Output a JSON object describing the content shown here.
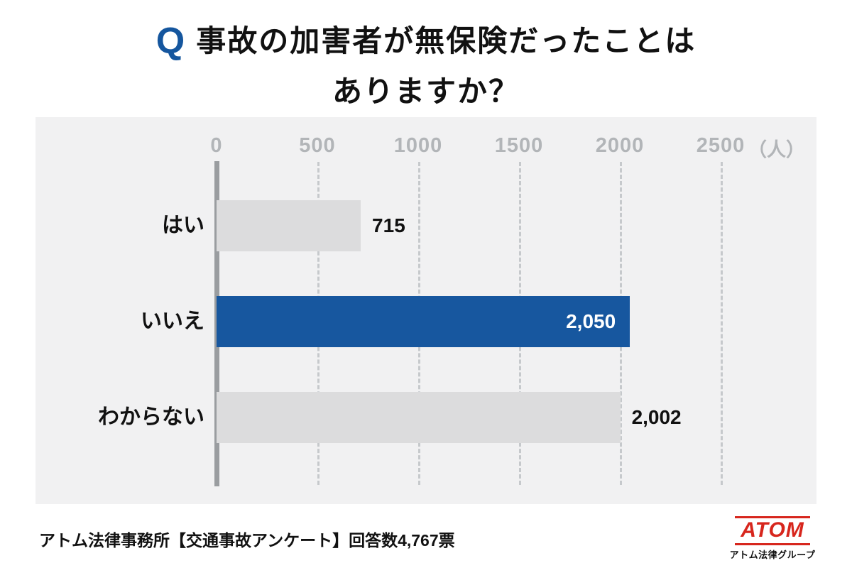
{
  "title": {
    "q_prefix": "Q",
    "line1": "事故の加害者が無保険だったことは",
    "line2": "ありますか？"
  },
  "chart_data": {
    "type": "bar",
    "orientation": "horizontal",
    "title": "事故の加害者が無保険だったことはありますか？",
    "categories": [
      "はい",
      "いいえ",
      "わからない"
    ],
    "values": [
      715,
      2050,
      2002
    ],
    "value_labels": [
      "715",
      "2,050",
      "2,002"
    ],
    "value_label_inside": [
      false,
      true,
      false
    ],
    "highlight_index": 1,
    "xlim": [
      0,
      2500
    ],
    "xticks": [
      0,
      500,
      1000,
      1500,
      2000,
      2500
    ],
    "xtick_labels": [
      "0",
      "500",
      "1000",
      "1500",
      "2000",
      "2500"
    ],
    "unit_label": "（人）",
    "grid": "vertical-dashed",
    "legend": false,
    "colors": {
      "bar_default": "#dcdcdd",
      "bar_highlight": "#17579f",
      "panel_background": "#f1f1f2",
      "tick_text": "#b2b5b8",
      "gridline": "#c6c9cc",
      "axis_line": "#9a9da0",
      "value_text_inside": "#ffffff",
      "value_text_outside": "#111111"
    }
  },
  "colors": {
    "accent_blue": "#15569e",
    "logo_red": "#d7261d",
    "text": "#111111"
  },
  "footer": {
    "source": "アトム法律事務所【交通事故アンケート】回答数4,767票",
    "logo": {
      "brand": "ATOM",
      "subtitle": "アトム法律グループ"
    }
  }
}
